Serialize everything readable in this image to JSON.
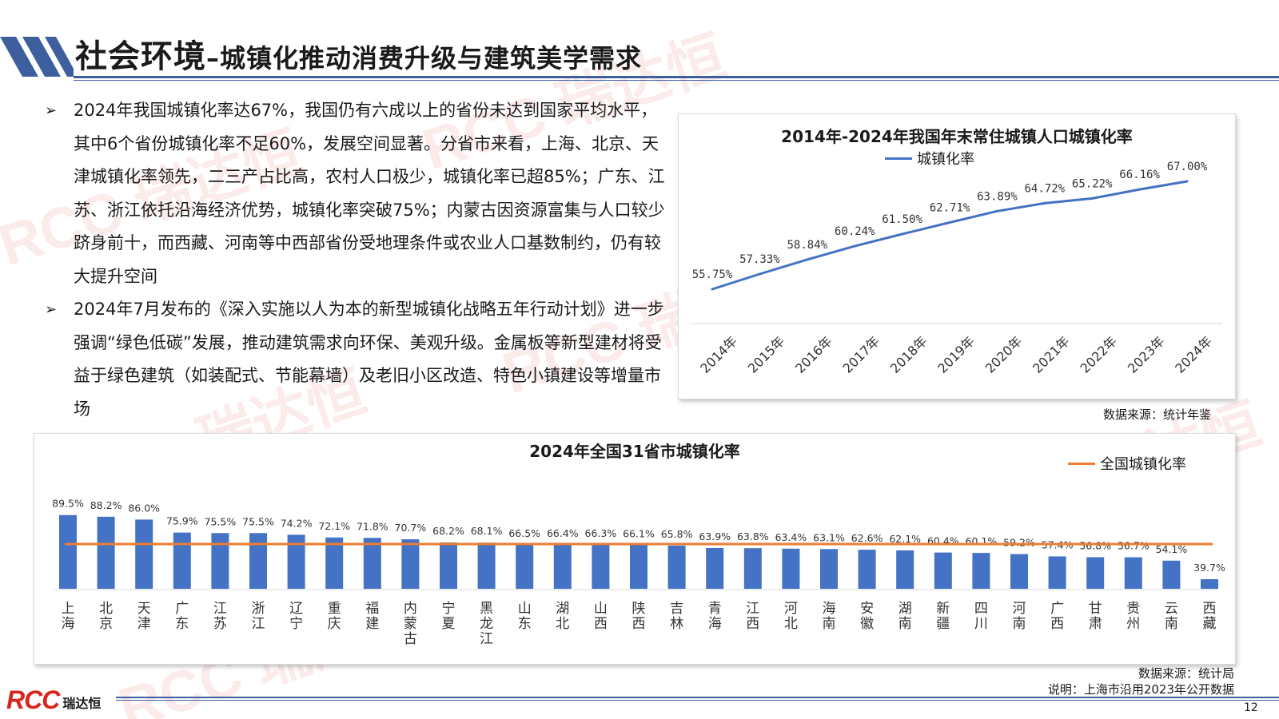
{
  "page": {
    "title": "社会环境",
    "subtitle": "城镇化推动消费升级与建筑美学需求",
    "page_number": "12",
    "logo_text": "RCC",
    "logo_cn": "瑞达恒",
    "watermark": "RCC 瑞达恒"
  },
  "bullets": [
    {
      "marker": "➢",
      "text": "2024年我国城镇化率达67%，我国仍有六成以上的省份未达到国家平均水平，其中6个省份城镇化率不足60%，发展空间显著。分省市来看，上海、北京、天津城镇化率领先，二三产占比高，农村人口极少，城镇化率已超85%；广东、江苏、浙江依托沿海经济优势，城镇化率突破75%；内蒙古因资源富集与人口较少跻身前十，而西藏、河南等中西部省份受地理条件或农业人口基数制约，仍有较大提升空间"
    },
    {
      "marker": "➢",
      "text": "2024年7月发布的《深入实施以人为本的新型城镇化战略五年行动计划》进一步强调“绿色低碳”发展，推动建筑需求向环保、美观升级。金属板等新型建材将受益于绿色建筑（如装配式、节能幕墙）及老旧小区改造、特色小镇建设等增量市场"
    }
  ],
  "line_chart_source": "数据来源：统计年鉴",
  "bar_chart_source": "数据来源：统计局",
  "bar_chart_note": "说明：上海市沿用2023年公开数据",
  "colors": {
    "line": "#4472c4",
    "bar": "#4472c4",
    "average": "#ed7d31",
    "accent": "#3d5f9e",
    "logo": "#d9261c"
  },
  "chart_data": [
    {
      "type": "line",
      "title": "2014年-2024年我国年末常住城镇人口城镇化率",
      "x": [
        "2014年",
        "2015年",
        "2016年",
        "2017年",
        "2018年",
        "2019年",
        "2020年",
        "2021年",
        "2022年",
        "2023年",
        "2024年"
      ],
      "series": [
        {
          "name": "城镇化率",
          "values": [
            55.75,
            57.33,
            58.84,
            60.24,
            61.5,
            62.71,
            63.89,
            64.72,
            65.22,
            66.16,
            67.0
          ],
          "labels": [
            "55.75%",
            "57.33%",
            "58.84%",
            "60.24%",
            "61.50%",
            "62.71%",
            "63.89%",
            "64.72%",
            "65.22%",
            "66.16%",
            "67.00%"
          ]
        }
      ],
      "legend": "top",
      "grid": false
    },
    {
      "type": "bar",
      "title": "2024年全国31省市城镇化率",
      "categories": [
        "上海",
        "北京",
        "天津",
        "广东",
        "江苏",
        "浙江",
        "辽宁",
        "重庆",
        "福建",
        "内蒙古",
        "宁夏",
        "黑龙江",
        "山东",
        "湖北",
        "山西",
        "陕西",
        "吉林",
        "青海",
        "江西",
        "河北",
        "海南",
        "安徽",
        "湖南",
        "新疆",
        "四川",
        "河南",
        "广西",
        "甘肃",
        "贵州",
        "云南",
        "西藏"
      ],
      "values": [
        89.5,
        88.2,
        86.0,
        75.9,
        75.5,
        75.5,
        74.2,
        72.1,
        71.8,
        70.7,
        68.2,
        68.1,
        66.5,
        66.4,
        66.3,
        66.1,
        65.8,
        63.9,
        63.8,
        63.4,
        63.1,
        62.6,
        62.1,
        60.4,
        60.1,
        59.2,
        57.4,
        56.8,
        56.7,
        54.1,
        39.7
      ],
      "labels": [
        "89.5%",
        "88.2%",
        "86.0%",
        "75.9%",
        "75.5%",
        "75.5%",
        "74.2%",
        "72.1%",
        "71.8%",
        "70.7%",
        "68.2%",
        "68.1%",
        "66.5%",
        "66.4%",
        "66.3%",
        "66.1%",
        "65.8%",
        "63.9%",
        "63.8%",
        "63.4%",
        "63.1%",
        "62.6%",
        "62.1%",
        "60.4%",
        "60.1%",
        "59.2%",
        "57.4%",
        "56.8%",
        "56.7%",
        "54.1%",
        "39.7%"
      ],
      "reference_line": {
        "name": "全国城镇化率",
        "value": 67.0
      },
      "legend": "top-right",
      "grid": false
    }
  ]
}
